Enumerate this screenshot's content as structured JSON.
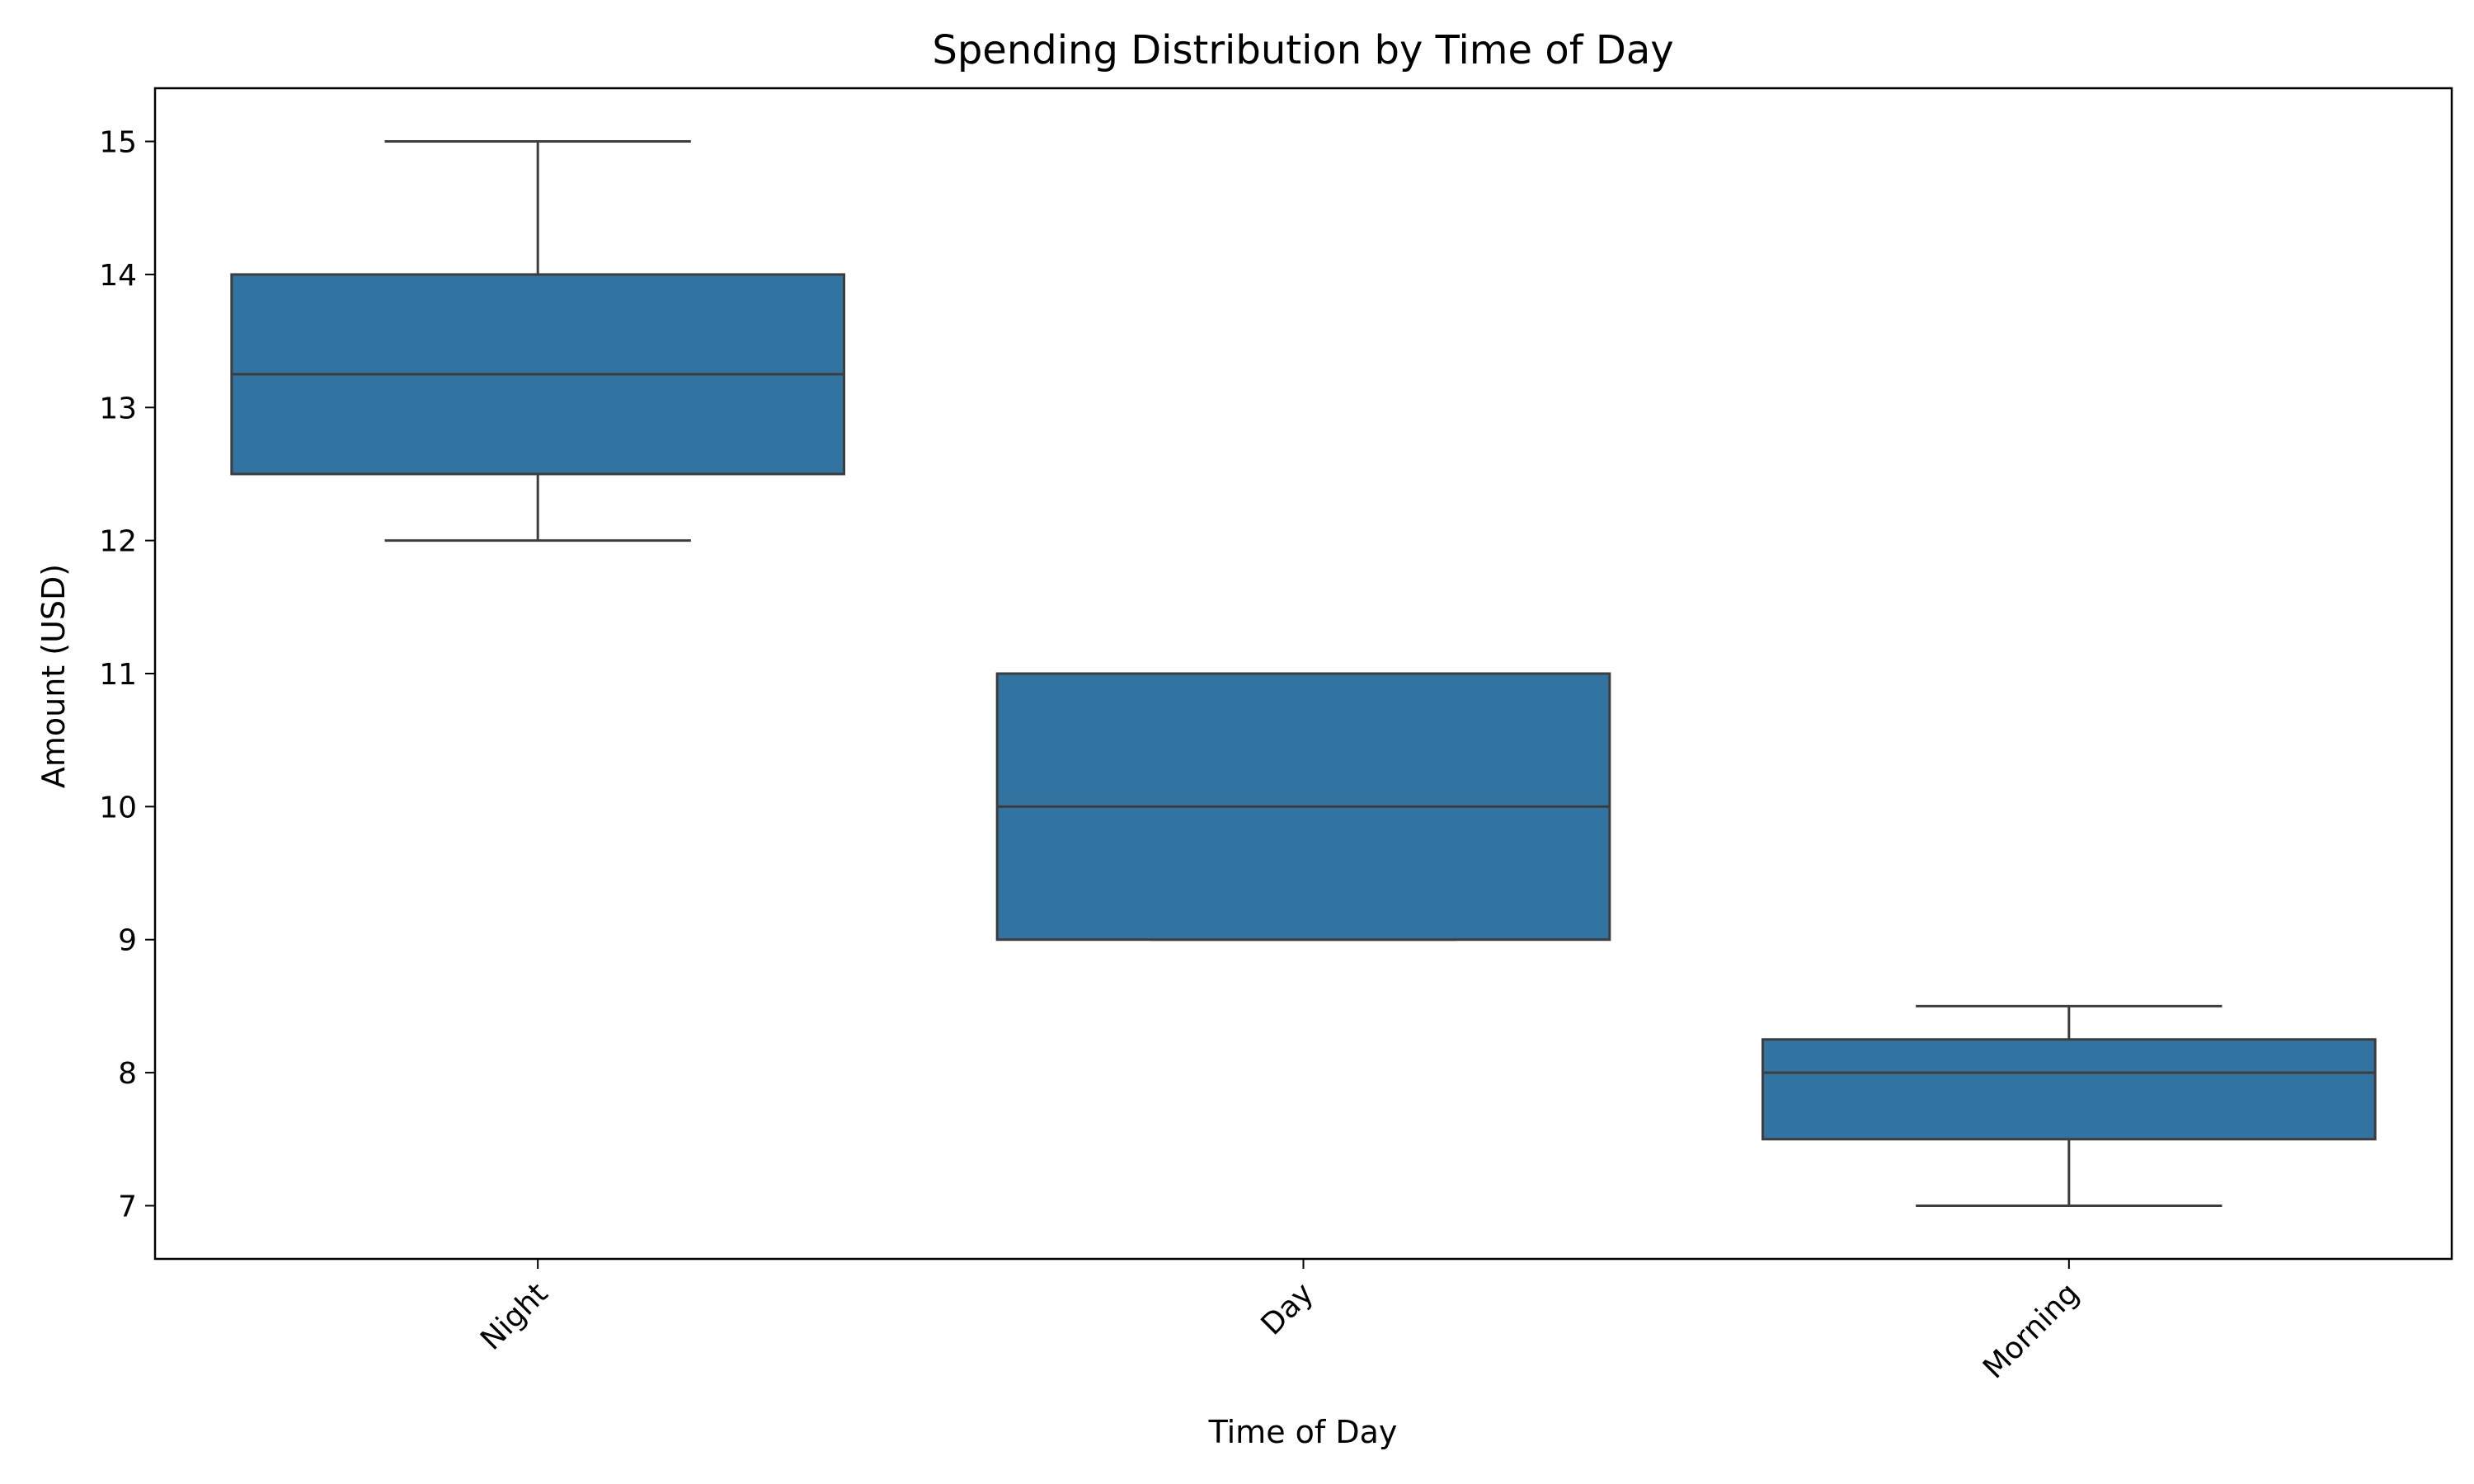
{
  "chart_data": {
    "type": "box",
    "title": "Spending Distribution by Time of Day",
    "xlabel": "Time of Day",
    "ylabel": "Amount (USD)",
    "categories": [
      "Night",
      "Day",
      "Morning"
    ],
    "boxes": [
      {
        "category": "Night",
        "whisker_low": 12,
        "q1": 12.5,
        "median": 13.25,
        "q3": 14,
        "whisker_high": 15
      },
      {
        "category": "Day",
        "whisker_low": 9,
        "q1": 9,
        "median": 10,
        "q3": 11,
        "whisker_high": 11
      },
      {
        "category": "Morning",
        "whisker_low": 7,
        "q1": 7.5,
        "median": 8,
        "q3": 8.25,
        "whisker_high": 8.5
      }
    ],
    "yticks": [
      7,
      8,
      9,
      10,
      11,
      12,
      13,
      14,
      15
    ],
    "ylim": [
      6.6,
      15.4
    ],
    "grid": false,
    "colors": {
      "box_fill": "#3274a1",
      "line": "#3d3d3d"
    }
  }
}
